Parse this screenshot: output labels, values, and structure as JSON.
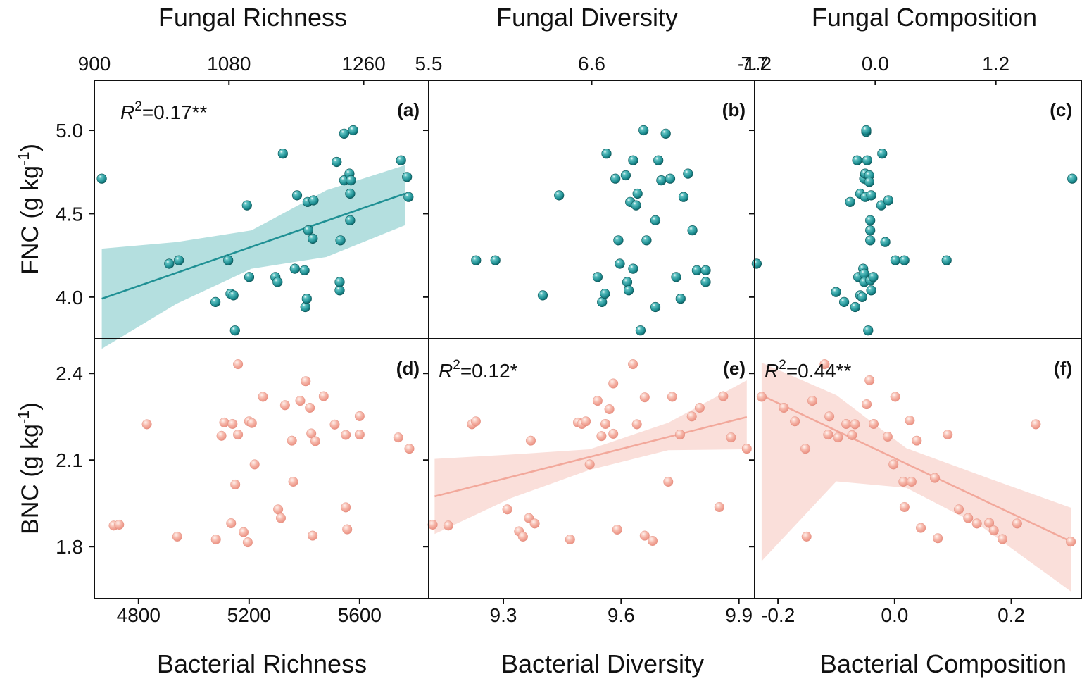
{
  "chart_data": {
    "type": "scatter",
    "colors": {
      "fungal": "#1f9094",
      "fungal_band": "#a7d9d9",
      "bacterial": "#f2a89b",
      "bacterial_band": "#fadcd6"
    },
    "column_titles": [
      "Fungal Richness",
      "Fungal Diversity",
      "Fungal Composition"
    ],
    "bottom_titles": [
      "Bacterial Richness",
      "Bacterial Diversity",
      "Bacterial Composition"
    ],
    "row_labels": [
      {
        "main": "FNC (g kg",
        "sup": "-1",
        "end": ")"
      },
      {
        "main": "BNC (g kg",
        "sup": "-1",
        "end": ")"
      }
    ],
    "top_axes": [
      {
        "ticks": [
          900,
          1080,
          1260
        ],
        "tick_labels": [
          "900",
          "1080",
          "1260"
        ],
        "xlim": [
          900,
          1347
        ]
      },
      {
        "ticks": [
          5.5,
          6.6,
          7.7
        ],
        "tick_labels": [
          "5.5",
          "6.6",
          "7.7"
        ],
        "xlim": [
          5.5,
          7.7
        ]
      },
      {
        "ticks": [
          -1.2,
          0.0,
          1.2
        ],
        "tick_labels": [
          "-1.2",
          "0.0",
          "1.2"
        ],
        "xlim": [
          -1.2,
          2.05
        ]
      }
    ],
    "bottom_axes": [
      {
        "ticks": [
          4800,
          5200,
          5600
        ],
        "tick_labels": [
          "4800",
          "5200",
          "5600"
        ],
        "xlim": [
          4640,
          5850
        ]
      },
      {
        "ticks": [
          9.3,
          9.6,
          9.9
        ],
        "tick_labels": [
          "9.3",
          "9.6",
          "9.9"
        ],
        "xlim": [
          9.11,
          9.94
        ]
      },
      {
        "ticks": [
          -0.2,
          0.0,
          0.2
        ],
        "tick_labels": [
          "-0.2",
          "0.0",
          "0.2"
        ],
        "xlim": [
          -0.24,
          0.32
        ]
      }
    ],
    "y_axes": [
      {
        "ticks": [
          4.0,
          4.5,
          5.0
        ],
        "tick_labels": [
          "4.0",
          "4.5",
          "5.0"
        ],
        "ylim": [
          3.75,
          5.3
        ]
      },
      {
        "ticks": [
          1.8,
          2.1,
          2.4
        ],
        "tick_labels": [
          "1.8",
          "2.1",
          "2.4"
        ],
        "ylim": [
          1.62,
          2.52
        ]
      }
    ],
    "panels": [
      {
        "label": "(a)",
        "row": 0,
        "col": 0,
        "r2": "=0.17**",
        "x": [
          910,
          1000,
          1013,
          1062,
          1079,
          1082,
          1086,
          1088,
          1104,
          1107,
          1142,
          1145,
          1152,
          1168,
          1171,
          1181,
          1182,
          1184,
          1185,
          1186,
          1192,
          1193,
          1224,
          1228,
          1228,
          1229,
          1234,
          1234,
          1241,
          1242,
          1242,
          1243,
          1246,
          1310,
          1318,
          1320
        ],
        "y": [
          4.71,
          4.2,
          4.22,
          3.97,
          4.22,
          4.02,
          4.01,
          3.8,
          4.55,
          4.12,
          4.12,
          4.09,
          4.86,
          4.17,
          4.61,
          4.16,
          3.94,
          3.99,
          4.57,
          4.4,
          4.35,
          4.58,
          4.81,
          4.04,
          4.09,
          4.34,
          4.7,
          4.98,
          4.74,
          4.62,
          4.46,
          4.7,
          5.0,
          4.82,
          4.72,
          4.6
        ],
        "fit": {
          "x": [
            910,
            1315
          ],
          "y": [
            3.99,
            4.62
          ]
        },
        "band": {
          "x": [
            910,
            1010,
            1110,
            1210,
            1315
          ],
          "lo": [
            3.69,
            3.96,
            4.17,
            4.24,
            4.43
          ],
          "hi": [
            4.29,
            4.33,
            4.4,
            4.64,
            4.79
          ]
        }
      },
      {
        "label": "(b)",
        "row": 0,
        "col": 1,
        "r2": "",
        "x": [
          5.82,
          5.95,
          6.27,
          6.38,
          6.64,
          6.67,
          6.69,
          6.7,
          6.76,
          6.78,
          6.79,
          6.83,
          6.84,
          6.85,
          6.86,
          6.88,
          6.88,
          6.9,
          6.91,
          6.93,
          6.95,
          6.97,
          7.03,
          7.03,
          7.05,
          7.07,
          7.1,
          7.13,
          7.17,
          7.2,
          7.22,
          7.25,
          7.28,
          7.31,
          7.37,
          7.37
        ],
        "y": [
          4.22,
          4.22,
          4.01,
          4.61,
          4.12,
          3.97,
          4.02,
          4.86,
          4.71,
          4.34,
          4.2,
          4.73,
          4.09,
          4.04,
          4.57,
          4.17,
          4.82,
          4.55,
          4.62,
          3.8,
          5.0,
          4.34,
          3.94,
          4.46,
          4.82,
          4.7,
          4.98,
          4.71,
          4.12,
          3.99,
          4.6,
          4.74,
          4.4,
          4.16,
          4.09,
          4.16
        ],
        "fit": null,
        "band": null
      },
      {
        "label": "(c)",
        "row": 0,
        "col": 2,
        "r2": "",
        "x": [
          -1.18,
          -0.39,
          -0.31,
          -0.25,
          -0.2,
          -0.18,
          -0.17,
          -0.15,
          -0.15,
          -0.13,
          -0.12,
          -0.11,
          -0.11,
          -0.11,
          -0.1,
          -0.1,
          -0.09,
          -0.09,
          -0.08,
          -0.07,
          -0.06,
          -0.06,
          -0.05,
          -0.05,
          -0.05,
          -0.05,
          -0.04,
          -0.04,
          -0.02,
          0.06,
          0.07,
          0.1,
          0.13,
          0.2,
          0.29,
          0.71,
          1.96
        ],
        "y": [
          4.2,
          4.03,
          3.97,
          4.57,
          3.94,
          4.82,
          4.12,
          4.01,
          4.62,
          4.0,
          4.17,
          4.14,
          4.09,
          4.71,
          4.74,
          4.6,
          4.99,
          5.0,
          4.82,
          3.8,
          4.73,
          4.69,
          4.46,
          4.4,
          4.34,
          4.1,
          4.04,
          4.61,
          4.12,
          4.55,
          4.86,
          4.33,
          4.58,
          4.22,
          4.22,
          4.22,
          4.71
        ],
        "fit": null,
        "band": null
      },
      {
        "label": "(d)",
        "row": 1,
        "col": 0,
        "r2": "",
        "x": [
          4710,
          4730,
          4830,
          4940,
          5080,
          5100,
          5110,
          5135,
          5140,
          5150,
          5160,
          5160,
          5180,
          5195,
          5200,
          5210,
          5220,
          5250,
          5305,
          5315,
          5330,
          5355,
          5360,
          5385,
          5405,
          5420,
          5425,
          5430,
          5440,
          5470,
          5510,
          5550,
          5550,
          5555,
          5600,
          5600,
          5740,
          5780
        ],
        "y": [
          1.873,
          1.876,
          2.224,
          1.835,
          1.825,
          2.184,
          2.23,
          1.881,
          2.225,
          2.015,
          2.432,
          2.188,
          1.85,
          1.815,
          2.234,
          2.228,
          2.085,
          2.319,
          1.929,
          1.899,
          2.29,
          2.167,
          2.025,
          2.305,
          2.373,
          2.281,
          2.192,
          1.838,
          2.165,
          2.321,
          2.223,
          2.187,
          1.936,
          1.86,
          2.252,
          2.188,
          2.178,
          2.139
        ],
        "fit": null,
        "band": null
      },
      {
        "label": "(e)",
        "row": 1,
        "col": 1,
        "r2": "=0.12*",
        "x": [
          9.12,
          9.16,
          9.22,
          9.23,
          9.31,
          9.34,
          9.35,
          9.365,
          9.37,
          9.38,
          9.47,
          9.49,
          9.5,
          9.51,
          9.52,
          9.54,
          9.55,
          9.56,
          9.57,
          9.58,
          9.58,
          9.59,
          9.63,
          9.64,
          9.66,
          9.66,
          9.68,
          9.72,
          9.73,
          9.75,
          9.78,
          9.8,
          9.85,
          9.86,
          9.88,
          9.92
        ],
        "y": [
          1.876,
          1.873,
          2.224,
          2.234,
          1.929,
          1.853,
          1.835,
          1.899,
          2.167,
          1.88,
          1.825,
          2.23,
          2.225,
          2.234,
          2.085,
          2.305,
          2.183,
          2.225,
          2.276,
          2.365,
          2.191,
          1.859,
          2.432,
          2.224,
          1.838,
          2.317,
          1.82,
          2.025,
          2.319,
          2.188,
          2.251,
          2.281,
          1.937,
          2.321,
          2.178,
          2.139
        ],
        "fit": {
          "x": [
            9.125,
            9.92
          ],
          "y": [
            1.974,
            2.249
          ]
        },
        "band": {
          "x": [
            9.125,
            9.32,
            9.52,
            9.72,
            9.92
          ],
          "lo": [
            1.844,
            1.968,
            2.066,
            2.134,
            2.137
          ],
          "hi": [
            2.104,
            2.119,
            2.137,
            2.229,
            2.376
          ]
        }
      },
      {
        "label": "(f)",
        "row": 1,
        "col": 2,
        "r2": "=0.44**",
        "x": [
          -0.228,
          -0.19,
          -0.171,
          -0.153,
          -0.151,
          -0.141,
          -0.12,
          -0.114,
          -0.112,
          -0.097,
          -0.083,
          -0.073,
          -0.068,
          -0.048,
          -0.043,
          -0.036,
          -0.012,
          -0.002,
          0.001,
          0.015,
          0.017,
          0.026,
          0.029,
          0.038,
          0.045,
          0.069,
          0.074,
          0.091,
          0.11,
          0.126,
          0.141,
          0.162,
          0.17,
          0.185,
          0.21,
          0.242,
          0.302
        ],
        "y": [
          2.319,
          2.281,
          2.234,
          2.139,
          1.835,
          2.305,
          2.432,
          2.188,
          2.251,
          2.178,
          2.225,
          2.186,
          2.224,
          2.293,
          2.376,
          2.225,
          2.181,
          2.085,
          2.319,
          2.025,
          1.937,
          2.237,
          2.025,
          2.167,
          1.865,
          2.038,
          1.829,
          2.188,
          1.929,
          1.899,
          1.88,
          1.882,
          1.856,
          1.826,
          1.88,
          2.224,
          1.817
        ],
        "fit": {
          "x": [
            -0.228,
            0.302
          ],
          "y": [
            2.324,
            1.818
          ]
        },
        "band": {
          "x": [
            -0.228,
            -0.1,
            0.02,
            0.15,
            0.302
          ],
          "lo": [
            1.75,
            2.026,
            2.004,
            1.868,
            1.645
          ],
          "hi": [
            2.437,
            2.325,
            2.141,
            2.045,
            1.935
          ]
        }
      }
    ]
  }
}
